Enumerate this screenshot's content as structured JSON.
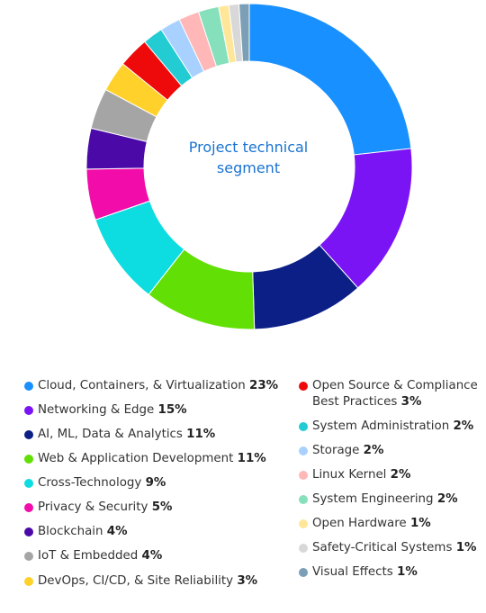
{
  "chart_data": {
    "type": "pie",
    "variant": "donut",
    "title": "Project technical segment",
    "slices": [
      {
        "label": "Cloud, Containers, & Virtualization",
        "value": 23,
        "pct_label": "23%",
        "color": "#1990ff"
      },
      {
        "label": "Networking & Edge",
        "value": 15,
        "pct_label": "15%",
        "color": "#7a14f5"
      },
      {
        "label": "AI, ML, Data & Analytics",
        "value": 11,
        "pct_label": "11%",
        "color": "#0b1f86"
      },
      {
        "label": "Web & Application Development",
        "value": 11,
        "pct_label": "11%",
        "color": "#62e005"
      },
      {
        "label": "Cross-Technology",
        "value": 9,
        "pct_label": "9%",
        "color": "#0ddde0"
      },
      {
        "label": "Privacy & Security",
        "value": 5,
        "pct_label": "5%",
        "color": "#f20caa"
      },
      {
        "label": "Blockchain",
        "value": 4,
        "pct_label": "4%",
        "color": "#4b0aa8"
      },
      {
        "label": "IoT & Embedded",
        "value": 4,
        "pct_label": "4%",
        "color": "#a5a5a5"
      },
      {
        "label": "DevOps, CI/CD, & Site Reliability",
        "value": 3,
        "pct_label": "3%",
        "color": "#ffd12a"
      },
      {
        "label": "Open Source & Compliance Best Practices",
        "label_lines": [
          "Open Source & Compliance",
          "Best Practices"
        ],
        "value": 3,
        "pct_label": "3%",
        "color": "#ee0a0a"
      },
      {
        "label": "System Administration",
        "value": 2,
        "pct_label": "2%",
        "color": "#22ccd2"
      },
      {
        "label": "Storage",
        "value": 2,
        "pct_label": "2%",
        "color": "#a8d1ff"
      },
      {
        "label": "Linux Kernel",
        "value": 2,
        "pct_label": "2%",
        "color": "#ffb7b7"
      },
      {
        "label": "System Engineering",
        "value": 2,
        "pct_label": "2%",
        "color": "#86e0bb"
      },
      {
        "label": "Open Hardware",
        "value": 1,
        "pct_label": "1%",
        "color": "#ffe698"
      },
      {
        "label": "Safety-Critical Systems",
        "value": 1,
        "pct_label": "1%",
        "color": "#d8d8d8"
      },
      {
        "label": "Visual Effects",
        "value": 1,
        "pct_label": "1%",
        "color": "#7b9fb6"
      }
    ],
    "legend_placement": "bottom, two columns"
  }
}
